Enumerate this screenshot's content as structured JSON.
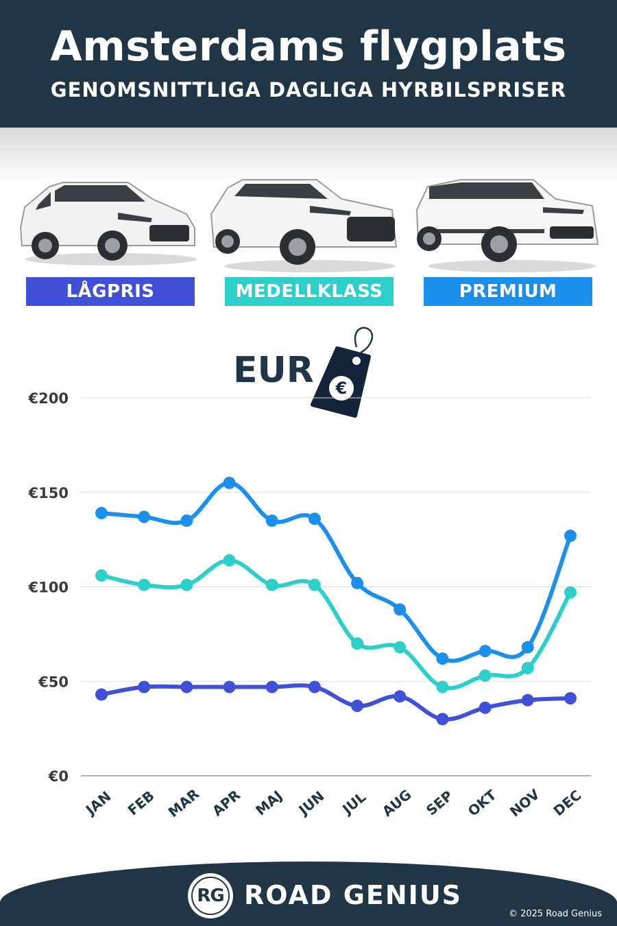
{
  "header": {
    "title": "Amsterdams flygplats",
    "subtitle": "GENOMSNITTLIGA DAGLIGA HYRBILSPRISER"
  },
  "categories": [
    {
      "label": "LÅGPRIS",
      "color": "#4050d8"
    },
    {
      "label": "MEDELLKLASS",
      "color": "#2ccfc9"
    },
    {
      "label": "PREMIUM",
      "color": "#1a90ec"
    }
  ],
  "currency": {
    "label": "EUR",
    "symbol": "€"
  },
  "chart_data": {
    "type": "line",
    "categories": [
      "JAN",
      "FEB",
      "MAR",
      "APR",
      "MAJ",
      "JUN",
      "JUL",
      "AUG",
      "SEP",
      "OKT",
      "NOV",
      "DEC"
    ],
    "series": [
      {
        "name": "PREMIUM",
        "color": "#1a90ec",
        "values": [
          139,
          137,
          135,
          155,
          135,
          136,
          102,
          88,
          62,
          66,
          68,
          127
        ]
      },
      {
        "name": "MEDELLKLASS",
        "color": "#2ccfc9",
        "values": [
          106,
          101,
          101,
          114,
          101,
          101,
          70,
          68,
          47,
          53,
          57,
          97
        ]
      },
      {
        "name": "LÅGPRIS",
        "color": "#4050d8",
        "values": [
          43,
          47,
          47,
          47,
          47,
          47,
          37,
          42,
          30,
          36,
          40,
          41
        ]
      }
    ],
    "yticks": [
      "€0",
      "€50",
      "€100",
      "€150",
      "€200"
    ],
    "ytick_values": [
      0,
      50,
      100,
      150,
      200
    ],
    "ylim": [
      0,
      200
    ],
    "grid": true
  },
  "footer": {
    "logo": "RG",
    "brand": "ROAD GENIUS",
    "copyright": "© 2025 Road Genius"
  }
}
